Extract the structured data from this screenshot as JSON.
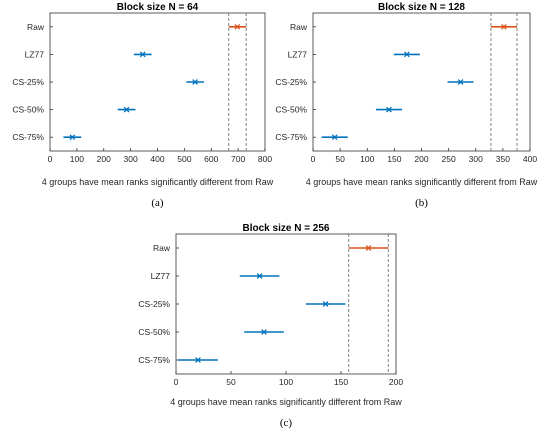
{
  "colors": {
    "highlight": "#d95319",
    "normal": "#0072bd",
    "cutoff": "#808080"
  },
  "chart_data": [
    {
      "type": "scatter",
      "title": "Block size N = 64",
      "xlabel": "4 groups have mean ranks significantly different from Raw",
      "caption": "(a)",
      "categories": [
        "Raw",
        "LZ77",
        "CS-25%",
        "CS-50%",
        "CS-75%"
      ],
      "xlim": [
        0,
        800
      ],
      "xticks": [
        "0",
        "100",
        "200",
        "300",
        "400",
        "500",
        "600",
        "700",
        "800"
      ],
      "series": [
        {
          "category": "Raw",
          "mean": 697,
          "low": 665,
          "high": 730,
          "highlight": true
        },
        {
          "category": "LZ77",
          "mean": 345,
          "low": 312,
          "high": 378,
          "highlight": false
        },
        {
          "category": "CS-25%",
          "mean": 540,
          "low": 507,
          "high": 573,
          "highlight": false
        },
        {
          "category": "CS-50%",
          "mean": 285,
          "low": 252,
          "high": 318,
          "highlight": false
        },
        {
          "category": "CS-75%",
          "mean": 83,
          "low": 50,
          "high": 116,
          "highlight": false
        }
      ],
      "cutoff_lines": [
        665,
        730
      ]
    },
    {
      "type": "scatter",
      "title": "Block size N = 128",
      "xlabel": "4 groups have mean ranks significantly different from Raw",
      "caption": "(b)",
      "categories": [
        "Raw",
        "LZ77",
        "CS-25%",
        "CS-50%",
        "CS-75%"
      ],
      "xlim": [
        0,
        400
      ],
      "xticks": [
        "0",
        "50",
        "100",
        "150",
        "200",
        "250",
        "300",
        "350",
        "400"
      ],
      "series": [
        {
          "category": "Raw",
          "mean": 352,
          "low": 328,
          "high": 376,
          "highlight": true
        },
        {
          "category": "LZ77",
          "mean": 173,
          "low": 149,
          "high": 197,
          "highlight": false
        },
        {
          "category": "CS-25%",
          "mean": 272,
          "low": 248,
          "high": 296,
          "highlight": false
        },
        {
          "category": "CS-50%",
          "mean": 140,
          "low": 116,
          "high": 164,
          "highlight": false
        },
        {
          "category": "CS-75%",
          "mean": 40,
          "low": 16,
          "high": 64,
          "highlight": false
        }
      ],
      "cutoff_lines": [
        328,
        376
      ]
    },
    {
      "type": "scatter",
      "title": "Block size N = 256",
      "xlabel": "4 groups have mean ranks significantly different from Raw",
      "caption": "(c)",
      "categories": [
        "Raw",
        "LZ77",
        "CS-25%",
        "CS-50%",
        "CS-75%"
      ],
      "xlim": [
        0,
        200
      ],
      "xticks": [
        "0",
        "50",
        "100",
        "150",
        "200"
      ],
      "series": [
        {
          "category": "Raw",
          "mean": 175,
          "low": 157,
          "high": 193,
          "highlight": true
        },
        {
          "category": "LZ77",
          "mean": 76,
          "low": 58,
          "high": 94,
          "highlight": false
        },
        {
          "category": "CS-25%",
          "mean": 136,
          "low": 118,
          "high": 154,
          "highlight": false
        },
        {
          "category": "CS-50%",
          "mean": 80,
          "low": 62,
          "high": 98,
          "highlight": false
        },
        {
          "category": "CS-75%",
          "mean": 20,
          "low": 2,
          "high": 38,
          "highlight": false
        }
      ],
      "cutoff_lines": [
        157,
        193
      ]
    }
  ]
}
